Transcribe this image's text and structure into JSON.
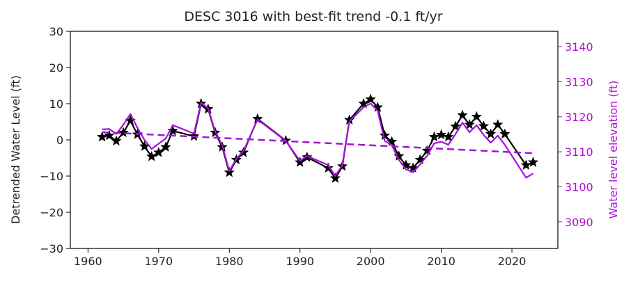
{
  "chart_data": {
    "type": "line",
    "title": "DESC 3016 with best-fit trend -0.1 ft/yr",
    "xlabel": "",
    "ylabel": "Detrended Water Level (ft)",
    "ylabel_right": "Water level elevation (ft)",
    "xlim": [
      1957.5,
      2026.5
    ],
    "ylim": [
      -30,
      30
    ],
    "ylim_right": [
      3082.4,
      3144.4
    ],
    "x_ticks": [
      1960,
      1970,
      1980,
      1990,
      2000,
      2010,
      2020
    ],
    "y_ticks": [
      -30,
      -20,
      -10,
      0,
      10,
      20,
      30
    ],
    "y_ticks_right": [
      3090,
      3100,
      3110,
      3120,
      3130,
      3140
    ],
    "colors": {
      "detrended": "#000000",
      "elevation": "#a511d8",
      "right_axis": "#b20fd6"
    },
    "series": [
      {
        "axis": "left",
        "marker": "star",
        "x": [
          1962,
          1963,
          1964,
          1965,
          1966,
          1967,
          1968,
          1969,
          1970,
          1971,
          1972,
          1975,
          1976,
          1977,
          1978,
          1979,
          1980,
          1981,
          1982,
          1984,
          1988,
          1990,
          1991,
          1994,
          1995,
          1996,
          1997,
          1999,
          2000,
          2001,
          2002,
          2003,
          2004,
          2005,
          2006,
          2007,
          2008,
          2009,
          2010,
          2011,
          2012,
          2013,
          2014,
          2015,
          2016,
          2017,
          2018,
          2019,
          2022,
          2023
        ],
        "y": [
          0.8,
          1.2,
          -0.3,
          2.0,
          5.3,
          1.5,
          -1.8,
          -4.6,
          -3.5,
          -2.0,
          2.5,
          1.0,
          10.0,
          8.5,
          2.0,
          -2.0,
          -9.0,
          -5.5,
          -3.5,
          5.8,
          -0.2,
          -6.2,
          -4.8,
          -7.8,
          -10.6,
          -7.3,
          5.5,
          10.0,
          11.2,
          9.0,
          1.2,
          -0.5,
          -4.5,
          -7.0,
          -7.8,
          -5.5,
          -3.0,
          0.8,
          1.4,
          0.8,
          3.7,
          6.8,
          4.2,
          6.4,
          3.8,
          1.6,
          4.2,
          1.6,
          -7.0,
          -6.2
        ]
      },
      {
        "axis": "right",
        "marker": "none",
        "x": [
          1962,
          1963,
          1964,
          1965,
          1966,
          1967,
          1968,
          1969,
          1970,
          1971,
          1972,
          1975,
          1976,
          1977,
          1978,
          1979,
          1980,
          1981,
          1982,
          1984,
          1988,
          1990,
          1991,
          1994,
          1995,
          1996,
          1997,
          1999,
          2000,
          2001,
          2002,
          2003,
          2004,
          2005,
          2006,
          2007,
          2008,
          2009,
          2010,
          2011,
          2012,
          2013,
          2014,
          2015,
          2016,
          2017,
          2018,
          2019,
          2022,
          2023
        ],
        "y": [
          3116.4,
          3116.5,
          3115.1,
          3117.7,
          3120.8,
          3116.8,
          3113.4,
          3110.8,
          3112.3,
          3113.8,
          3117.6,
          3115.2,
          3124.0,
          3122.4,
          3115.8,
          3111.8,
          3104.5,
          3108.0,
          3110.2,
          3119.2,
          3113.1,
          3107.4,
          3108.8,
          3106.2,
          3103.1,
          3106.2,
          3118.7,
          3122.7,
          3123.8,
          3121.7,
          3113.1,
          3111.9,
          3107.7,
          3105.0,
          3104.1,
          3106.4,
          3108.9,
          3112.4,
          3112.9,
          3112.0,
          3115.0,
          3118.3,
          3115.6,
          3117.6,
          3114.8,
          3112.6,
          3114.6,
          3112.0,
          3102.6,
          3103.8
        ]
      },
      {
        "axis": "right",
        "marker": "none",
        "style": "dashed",
        "x": [
          1962,
          2023
        ],
        "y": [
          3115.6,
          3109.6
        ]
      }
    ]
  }
}
